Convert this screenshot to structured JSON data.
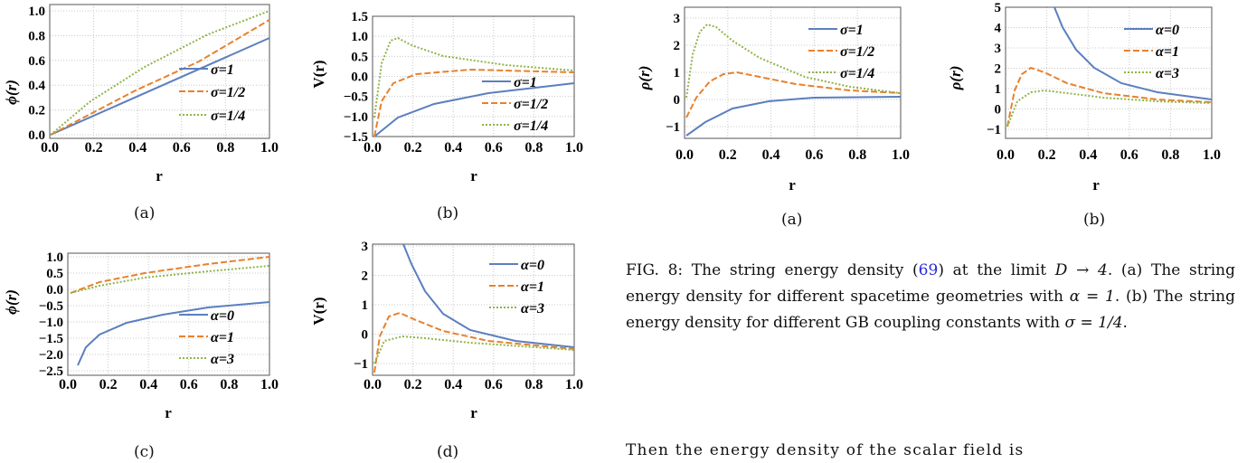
{
  "colors": {
    "c1": "#5b7fbf",
    "c2": "#e8812c",
    "c3": "#8fb447",
    "grid": "#c8c8c8",
    "link": "#2a2ad9"
  },
  "charts": {
    "a1": {
      "ylabel": "ϕ(r)",
      "xlabel": "r",
      "sublabel": "(a)",
      "xticks": [
        "0.0",
        "0.2",
        "0.4",
        "0.6",
        "0.8",
        "1.0"
      ],
      "yticks": [
        "0.0",
        "0.2",
        "0.4",
        "0.6",
        "0.8",
        "1.0"
      ],
      "legend": [
        "σ=1",
        "σ=1/2",
        "σ=1/4"
      ]
    },
    "b1": {
      "ylabel": "V(r)",
      "xlabel": "r",
      "sublabel": "(b)",
      "xticks": [
        "0.0",
        "0.2",
        "0.4",
        "0.6",
        "0.8",
        "1.0"
      ],
      "yticks": [
        "−1.5",
        "−1.0",
        "−0.5",
        "0.0",
        "0.5",
        "1.0",
        "1.5"
      ],
      "legend": [
        "σ=1",
        "σ=1/2",
        "σ=1/4"
      ]
    },
    "c1": {
      "ylabel": "ϕ(r)",
      "xlabel": "r",
      "sublabel": "(c)",
      "xticks": [
        "0.0",
        "0.2",
        "0.4",
        "0.6",
        "0.8",
        "1.0"
      ],
      "yticks": [
        "−2.5",
        "−2.0",
        "−1.5",
        "−1.0",
        "−0.5",
        "0.0",
        "0.5",
        "1.0"
      ],
      "legend": [
        "α=0",
        "α=1",
        "α=3"
      ]
    },
    "d1": {
      "ylabel": "V(r)",
      "xlabel": "r",
      "sublabel": "(d)",
      "xticks": [
        "0.0",
        "0.2",
        "0.4",
        "0.6",
        "0.8",
        "1.0"
      ],
      "yticks": [
        "−1",
        "0",
        "1",
        "2",
        "3"
      ],
      "legend": [
        "α=0",
        "α=1",
        "α=3"
      ]
    },
    "a2": {
      "ylabel": "ρ(r)",
      "xlabel": "r",
      "sublabel": "(a)",
      "xticks": [
        "0.0",
        "0.2",
        "0.4",
        "0.6",
        "0.8",
        "1.0"
      ],
      "yticks": [
        "−1",
        "0",
        "1",
        "2",
        "3"
      ],
      "legend": [
        "σ=1",
        "σ=1/2",
        "σ=1/4"
      ]
    },
    "b2": {
      "ylabel": "ρ(r)",
      "xlabel": "r",
      "sublabel": "(b)",
      "xticks": [
        "0.0",
        "0.2",
        "0.4",
        "0.6",
        "0.8",
        "1.0"
      ],
      "yticks": [
        "−1",
        "0",
        "1",
        "2",
        "3",
        "4",
        "5"
      ],
      "legend": [
        "α=0",
        "α=1",
        "α=3"
      ]
    }
  },
  "caption": {
    "fig": "FIG. 8:",
    "p1": " The string energy density (",
    "ref": "69",
    "p2": ") at the limit ",
    "math1": "D → 4",
    "p3": ". (a) The string energy density for different spacetime geometries with ",
    "math2": "α = 1",
    "p4": ". (b) The string energy density for different GB coupling constants with ",
    "math3": "σ = 1/4",
    "p5": "."
  },
  "body_text": "Then the energy density of the scalar field is"
}
